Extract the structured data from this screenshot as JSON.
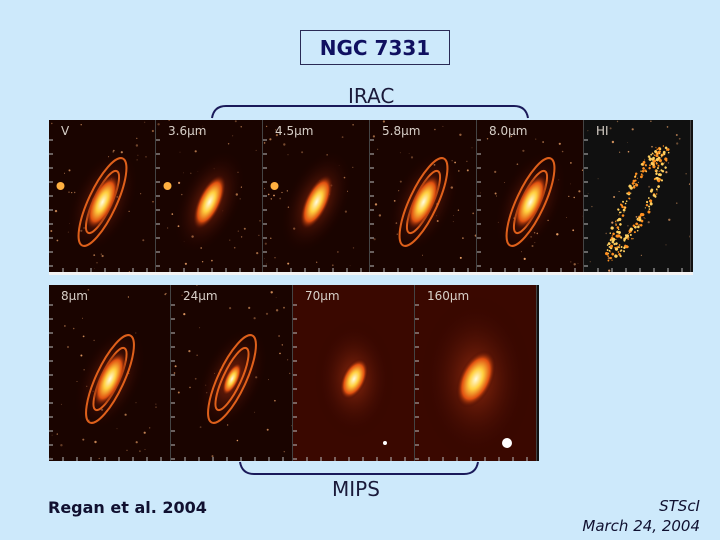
{
  "title": "NGC 7331",
  "irac_label": "IRAC",
  "mips_label": "MIPS",
  "top_panels": [
    {
      "label": "V",
      "style": "optical"
    },
    {
      "label": "3.6μm",
      "style": "ir-bright"
    },
    {
      "label": "4.5μm",
      "style": "ir-bright"
    },
    {
      "label": "5.8μm",
      "style": "ir-arms"
    },
    {
      "label": "8.0μm",
      "style": "ir-arms"
    },
    {
      "label": "HI",
      "style": "hi-ring"
    }
  ],
  "bottom_panels": [
    {
      "label": "8μm",
      "style": "ir-arms"
    },
    {
      "label": "24μm",
      "style": "mips-ring"
    },
    {
      "label": "70μm",
      "style": "mips-blob"
    },
    {
      "label": "160μm",
      "style": "mips-big"
    }
  ],
  "citation": "Regan et al. 2004",
  "footer": {
    "line1": "STScI",
    "line2": "March 24, 2004"
  },
  "colors": {
    "background": "#cde9fb",
    "brace": "#1a1a5a"
  }
}
